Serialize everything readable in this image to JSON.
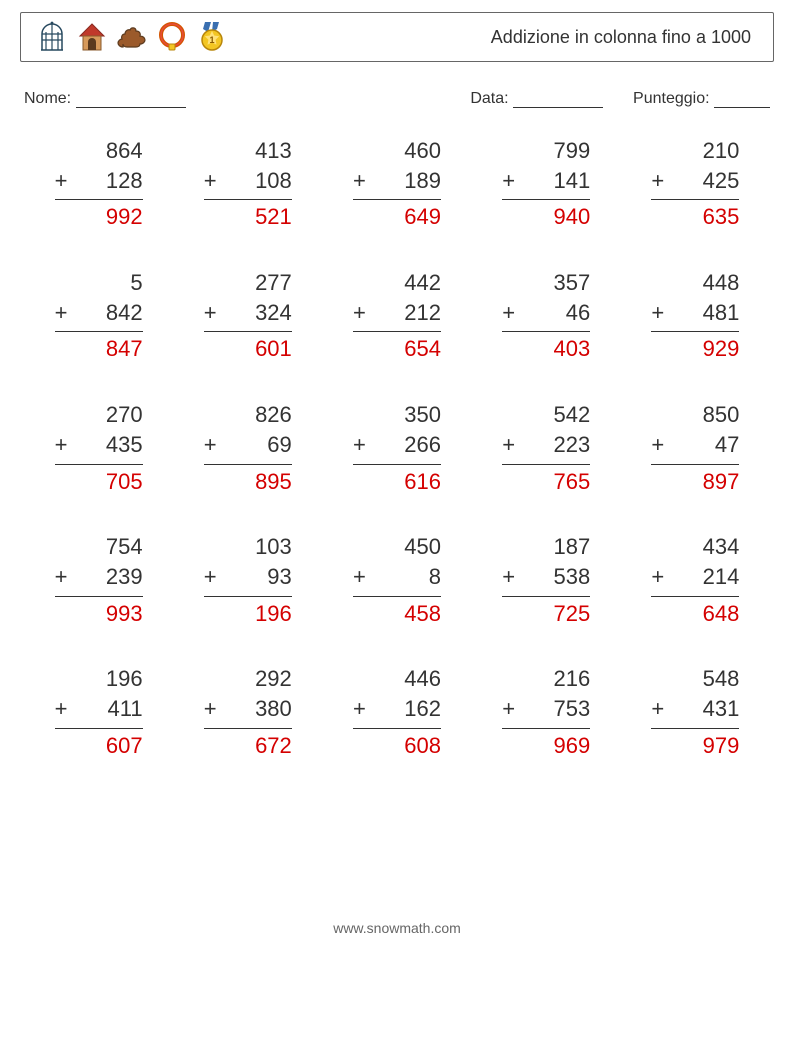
{
  "header": {
    "title": "Addizione in colonna fino a 1000",
    "icons": [
      "birdcage",
      "doghouse",
      "poop",
      "collar",
      "medal"
    ]
  },
  "meta": {
    "name_label": "Nome:",
    "date_label": "Data:",
    "score_label": "Punteggio:",
    "name_blank_width": 110,
    "date_blank_width": 90,
    "score_blank_width": 56
  },
  "style": {
    "text_color": "#333333",
    "answer_color": "#d40000",
    "rule_color": "#333333",
    "border_color": "#666666",
    "background": "#ffffff",
    "problem_fontsize": 22,
    "title_fontsize": 18,
    "meta_fontsize": 16,
    "footer_fontsize": 14,
    "operator": "+",
    "problem_width": 88,
    "grid_cols": 5,
    "grid_rows": 5,
    "col_gap": 32,
    "row_gap": 36
  },
  "problems": [
    {
      "a": 864,
      "b": 128,
      "ans": 992
    },
    {
      "a": 413,
      "b": 108,
      "ans": 521
    },
    {
      "a": 460,
      "b": 189,
      "ans": 649
    },
    {
      "a": 799,
      "b": 141,
      "ans": 940
    },
    {
      "a": 210,
      "b": 425,
      "ans": 635
    },
    {
      "a": 5,
      "b": 842,
      "ans": 847
    },
    {
      "a": 277,
      "b": 324,
      "ans": 601
    },
    {
      "a": 442,
      "b": 212,
      "ans": 654
    },
    {
      "a": 357,
      "b": 46,
      "ans": 403
    },
    {
      "a": 448,
      "b": 481,
      "ans": 929
    },
    {
      "a": 270,
      "b": 435,
      "ans": 705
    },
    {
      "a": 826,
      "b": 69,
      "ans": 895
    },
    {
      "a": 350,
      "b": 266,
      "ans": 616
    },
    {
      "a": 542,
      "b": 223,
      "ans": 765
    },
    {
      "a": 850,
      "b": 47,
      "ans": 897
    },
    {
      "a": 754,
      "b": 239,
      "ans": 993
    },
    {
      "a": 103,
      "b": 93,
      "ans": 196
    },
    {
      "a": 450,
      "b": 8,
      "ans": 458
    },
    {
      "a": 187,
      "b": 538,
      "ans": 725
    },
    {
      "a": 434,
      "b": 214,
      "ans": 648
    },
    {
      "a": 196,
      "b": 411,
      "ans": 607
    },
    {
      "a": 292,
      "b": 380,
      "ans": 672
    },
    {
      "a": 446,
      "b": 162,
      "ans": 608
    },
    {
      "a": 216,
      "b": 753,
      "ans": 969
    },
    {
      "a": 548,
      "b": 431,
      "ans": 979
    }
  ],
  "footer": {
    "text": "www.snowmath.com"
  },
  "icon_svgs": {
    "birdcage": {
      "stroke": "#27495f",
      "fill": "#cfe6f5"
    },
    "doghouse": {
      "roof": "#c0392b",
      "wall": "#d79a5b",
      "door": "#5b3a1e"
    },
    "poop": {
      "fill": "#9b5a2b",
      "outline": "#5b3a1e"
    },
    "collar": {
      "ring": "#d35400",
      "accent": "#e74c3c"
    },
    "medal": {
      "ribbon": "#3a6fb0",
      "coin": "#f3c623",
      "text": "1"
    }
  }
}
